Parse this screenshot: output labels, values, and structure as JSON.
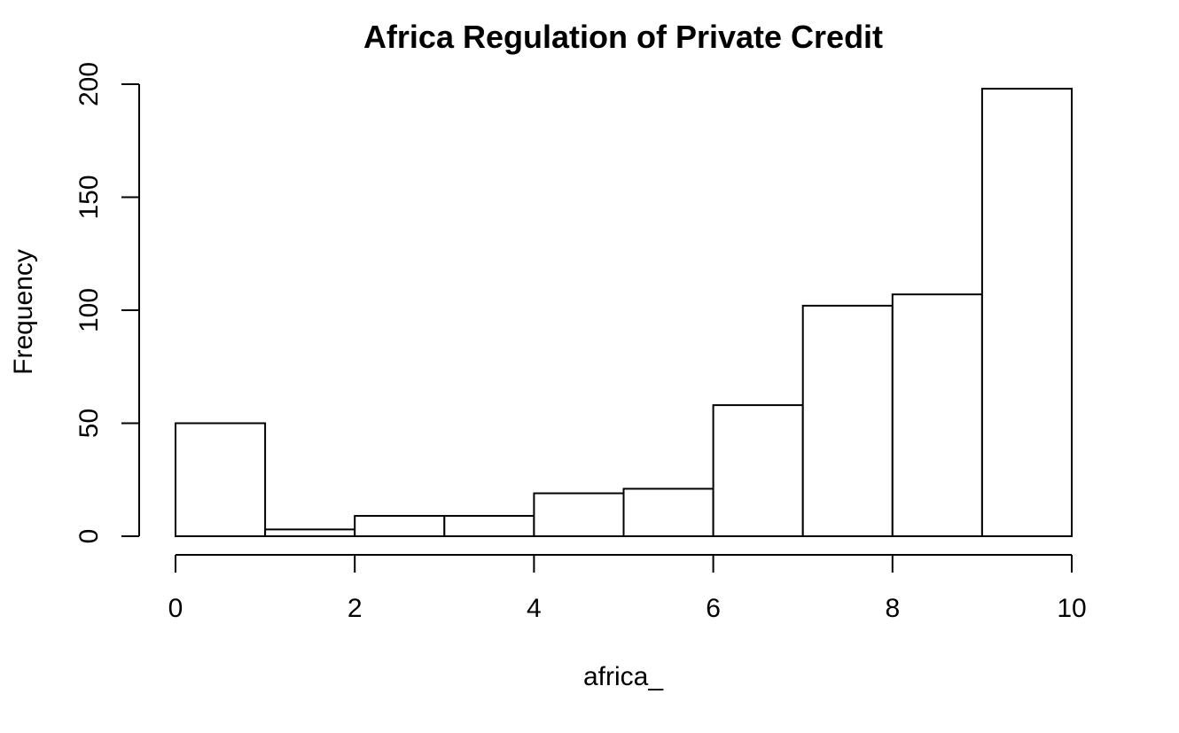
{
  "chart_data": {
    "type": "bar",
    "title": "Africa Regulation of Private Credit",
    "xlabel": "africa_",
    "ylabel": "Frequency",
    "bins": [
      {
        "start": 0,
        "end": 1,
        "count": 50
      },
      {
        "start": 1,
        "end": 2,
        "count": 3
      },
      {
        "start": 2,
        "end": 3,
        "count": 9
      },
      {
        "start": 3,
        "end": 4,
        "count": 9
      },
      {
        "start": 4,
        "end": 5,
        "count": 19
      },
      {
        "start": 5,
        "end": 6,
        "count": 21
      },
      {
        "start": 6,
        "end": 7,
        "count": 58
      },
      {
        "start": 7,
        "end": 8,
        "count": 102
      },
      {
        "start": 8,
        "end": 9,
        "count": 107
      },
      {
        "start": 9,
        "end": 10,
        "count": 198
      }
    ],
    "xlim": [
      0,
      10
    ],
    "ylim": [
      0,
      200
    ],
    "x_ticks": [
      "0",
      "2",
      "4",
      "6",
      "8",
      "10"
    ],
    "y_ticks": [
      "0",
      "50",
      "100",
      "150",
      "200"
    ],
    "grid": false,
    "legend": "none",
    "colors": {
      "bar_fill": "#ffffff",
      "bar_stroke": "#000000"
    }
  }
}
